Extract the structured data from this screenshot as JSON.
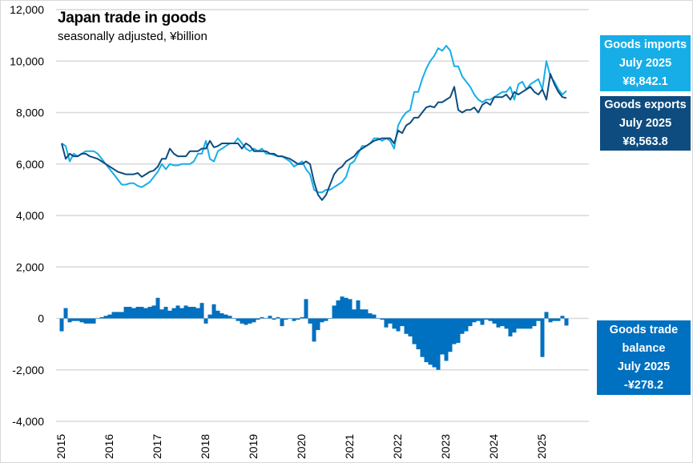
{
  "chart_data": {
    "type": "line",
    "title": "Japan trade in goods",
    "subtitle": "seasonally adjusted, ¥billion",
    "start": "2015-01",
    "frequency": "monthly",
    "ylim": [
      -4000,
      12000
    ],
    "yticks": [
      -4000,
      -2000,
      0,
      2000,
      4000,
      6000,
      8000,
      10000,
      12000
    ],
    "ytick_labels": [
      "-4,000",
      "-2,000",
      "0",
      "2,000",
      "4,000",
      "6,000",
      "8,000",
      "10,000",
      "12,000"
    ],
    "xticks": [
      "2015",
      "2016",
      "2017",
      "2018",
      "2019",
      "2020",
      "2021",
      "2022",
      "2023",
      "2024",
      "2025"
    ],
    "grid": true,
    "colors": {
      "imports": "#17aee8",
      "exports": "#0e4c7f",
      "balance": "#0070c0"
    },
    "series": [
      {
        "name": "Goods imports",
        "type": "line",
        "values": [
          6800,
          6700,
          6100,
          6400,
          6300,
          6400,
          6500,
          6500,
          6500,
          6400,
          6200,
          6000,
          5800,
          5600,
          5400,
          5200,
          5200,
          5250,
          5250,
          5150,
          5100,
          5200,
          5300,
          5500,
          5700,
          6000,
          5800,
          6000,
          5950,
          5950,
          6000,
          6000,
          6000,
          6100,
          6400,
          6400,
          6900,
          6200,
          6100,
          6500,
          6600,
          6700,
          6800,
          6800,
          7000,
          6800,
          6600,
          6500,
          6600,
          6500,
          6600,
          6400,
          6400,
          6350,
          6300,
          6300,
          6200,
          6100,
          5900,
          6000,
          6100,
          5800,
          5600,
          5000,
          4900,
          4900,
          5000,
          5000,
          5100,
          5200,
          5300,
          5500,
          6000,
          6100,
          6400,
          6700,
          6700,
          6800,
          7000,
          7000,
          6900,
          7000,
          6900,
          6600,
          7500,
          7800,
          8000,
          8100,
          8800,
          8800,
          9300,
          9700,
          10000,
          10200,
          10500,
          10400,
          10600,
          10400,
          9800,
          9800,
          9400,
          9200,
          9000,
          8700,
          8500,
          8400,
          8500,
          8500,
          8600,
          8700,
          8800,
          8800,
          9000,
          8500,
          9100,
          9200,
          8900,
          9100,
          9200,
          9300,
          8900,
          10000,
          9400,
          9200,
          8900,
          8700,
          8842.1
        ]
      },
      {
        "name": "Goods exports",
        "type": "line",
        "values": [
          6800,
          6200,
          6400,
          6300,
          6300,
          6400,
          6400,
          6300,
          6250,
          6200,
          6100,
          6000,
          5900,
          5800,
          5700,
          5650,
          5600,
          5600,
          5600,
          5650,
          5500,
          5600,
          5700,
          5750,
          5900,
          6200,
          6200,
          6600,
          6400,
          6300,
          6300,
          6300,
          6500,
          6500,
          6500,
          6600,
          6600,
          6900,
          6650,
          6700,
          6800,
          6800,
          6800,
          6800,
          6800,
          6600,
          6800,
          6700,
          6500,
          6500,
          6500,
          6500,
          6400,
          6400,
          6300,
          6300,
          6250,
          6200,
          6100,
          6000,
          6000,
          6100,
          6000,
          5300,
          4800,
          4600,
          4800,
          5200,
          5600,
          5800,
          5900,
          6100,
          6200,
          6300,
          6500,
          6600,
          6700,
          6800,
          6900,
          6950,
          7000,
          7000,
          7000,
          6800,
          7300,
          7200,
          7500,
          7600,
          7800,
          7800,
          8000,
          8200,
          8250,
          8200,
          8400,
          8400,
          8500,
          8600,
          9000,
          8100,
          8000,
          8100,
          8100,
          8200,
          8000,
          8300,
          8400,
          8300,
          8600,
          8600,
          8600,
          8700,
          8500,
          8800,
          8700,
          8800,
          8900,
          9000,
          8800,
          8700,
          8900,
          8500,
          9500,
          9100,
          8800,
          8600,
          8563.8
        ]
      },
      {
        "name": "Goods trade balance",
        "type": "bar",
        "values": [
          -500,
          400,
          -150,
          -100,
          -100,
          -150,
          -200,
          -200,
          -200,
          0,
          50,
          100,
          150,
          250,
          250,
          250,
          450,
          450,
          400,
          450,
          450,
          400,
          450,
          500,
          800,
          350,
          450,
          300,
          400,
          500,
          400,
          500,
          450,
          450,
          400,
          600,
          -200,
          150,
          550,
          300,
          200,
          150,
          100,
          0,
          -100,
          -200,
          -250,
          -200,
          -150,
          -50,
          50,
          0,
          100,
          -50,
          50,
          -300,
          -50,
          0,
          -100,
          -50,
          50,
          750,
          -200,
          -900,
          -450,
          -150,
          -100,
          0,
          500,
          700,
          850,
          800,
          750,
          350,
          700,
          350,
          350,
          200,
          150,
          0,
          -50,
          -350,
          -200,
          -400,
          -500,
          -300,
          -600,
          -700,
          -1000,
          -1200,
          -1500,
          -1700,
          -1800,
          -1900,
          -2000,
          -1400,
          -1650,
          -1300,
          -1000,
          -950,
          -600,
          -500,
          -300,
          -150,
          -100,
          -250,
          -50,
          -100,
          -200,
          -350,
          -300,
          -400,
          -700,
          -550,
          -400,
          -400,
          -400,
          -400,
          -300,
          -100,
          -1500,
          250,
          -150,
          -100,
          -100,
          100,
          -278.2
        ]
      }
    ],
    "annotations": {
      "imports": {
        "line1": "Goods imports",
        "line2": "July 2025",
        "line3": "¥8,842.1"
      },
      "exports": {
        "line1": "Goods exports",
        "line2": "July 2025",
        "line3": "¥8,563.8"
      },
      "balance": {
        "line1": "Goods trade",
        "line2": "balance",
        "line3": "July 2025",
        "line4": "-¥278.2"
      }
    }
  }
}
